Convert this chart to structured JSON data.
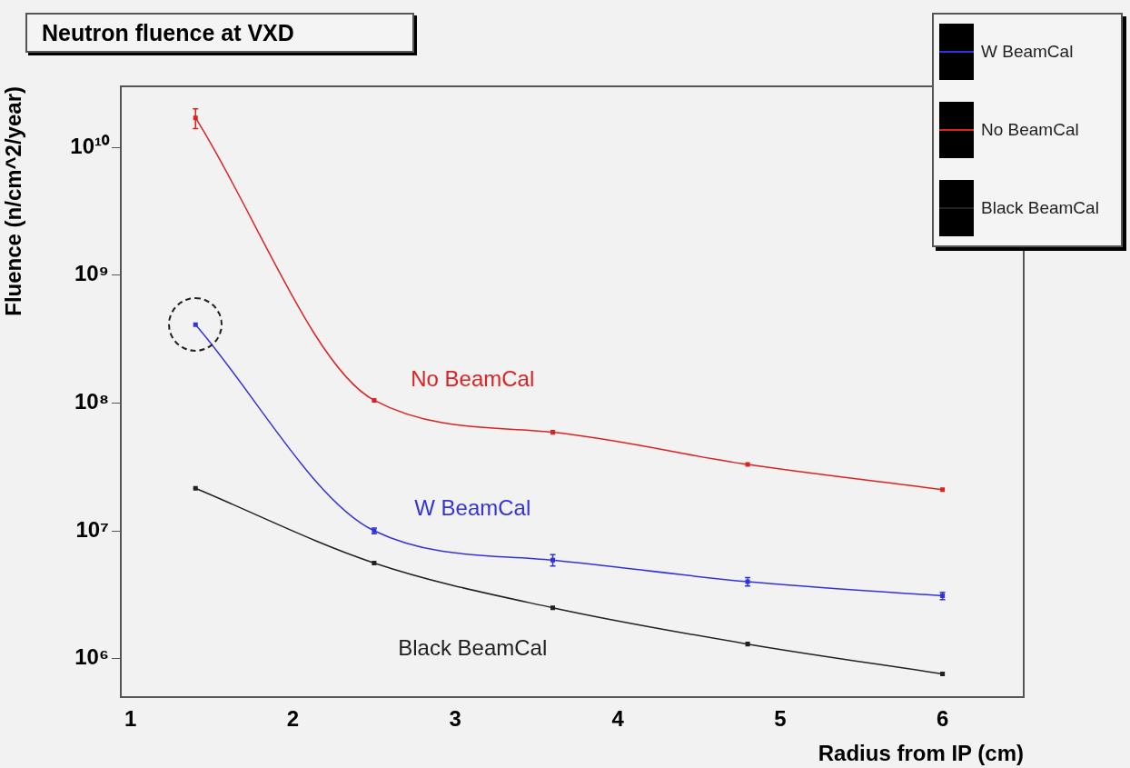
{
  "chart_data": {
    "type": "line",
    "title": "Neutron fluence at VXD",
    "xlabel": "Radius from IP (cm)",
    "ylabel": "Fluence (n/cm^2/year)",
    "x": [
      1.4,
      2.5,
      3.6,
      4.8,
      6.0
    ],
    "series": [
      {
        "name": "W BeamCal",
        "color": "#3333dd",
        "values": [
          410000000,
          10000000,
          5900000,
          4000000,
          3100000
        ],
        "errors": [
          null,
          500000,
          600000,
          300000,
          200000
        ]
      },
      {
        "name": "No BeamCal",
        "color": "#dd2222",
        "values": [
          17000000000,
          105000000,
          59000000,
          33000000,
          21000000
        ],
        "errors": [
          3000000000,
          null,
          null,
          null,
          null
        ]
      },
      {
        "name": "Black BeamCal",
        "color": "#222222",
        "values": [
          21500000,
          5600000,
          2500000,
          1300000,
          760000
        ]
      }
    ],
    "log": "y",
    "xlim": [
      0.94,
      6.5
    ],
    "xticks": [
      1,
      2,
      3,
      4,
      5,
      6
    ],
    "ylim": [
      500000,
      30000000000
    ],
    "yticks": [
      {
        "value": 1000000,
        "label": "10⁶"
      },
      {
        "value": 10000000,
        "label": "10⁷"
      },
      {
        "value": 100000000,
        "label": "10⁸"
      },
      {
        "value": 1000000000,
        "label": "10⁹"
      },
      {
        "value": 10000000000,
        "label": "10¹⁰"
      }
    ],
    "marker": "square",
    "line_style": "solid",
    "grid": false,
    "legend": "top right"
  }
}
